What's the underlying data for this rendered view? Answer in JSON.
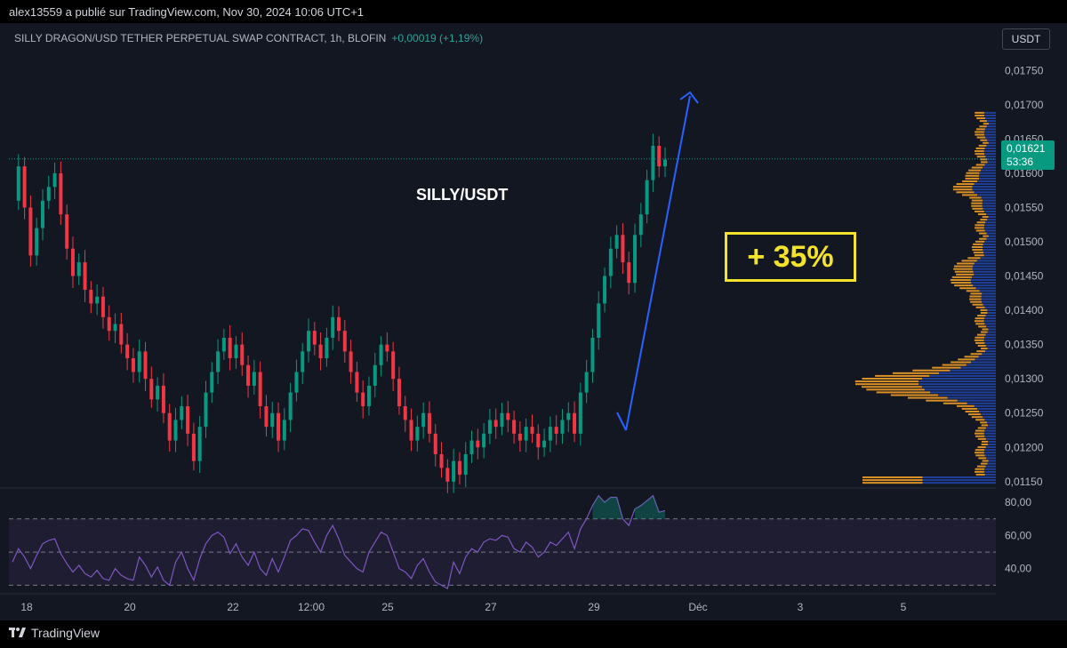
{
  "header": {
    "publisher_line": "alex13559 a publié sur TradingView.com, Nov 30, 2024 10:06 UTC+1"
  },
  "symbol": {
    "title": "SILLY DRAGON/USD TETHER PERPETUAL SWAP CONTRACT, 1h, BLOFIN",
    "change": "+0,00019 (+1,19%)"
  },
  "currency_button": "USDT",
  "last_price": {
    "value": "0,01621",
    "countdown": "53:36"
  },
  "annotations": {
    "pair_label": "SILLY/USDT",
    "gain_label": "+ 35%"
  },
  "footer": {
    "brand": "TradingView"
  },
  "colors": {
    "up": "#089981",
    "down": "#f23645",
    "rsi_line": "#7e57c2",
    "arrow": "#2962ff",
    "highlight": "#f5e22c",
    "volume_profile_up": "#2962ff",
    "volume_profile_down": "#ffa726"
  },
  "chart_data": [
    {
      "type": "candlestick",
      "price_axis": {
        "ticks": [
          "0,01750",
          "0,01700",
          "0,01650",
          "0,01600",
          "0,01550",
          "0,01500",
          "0,01450",
          "0,01400",
          "0,01350",
          "0,01300",
          "0,01250",
          "0,01200",
          "0,01150"
        ],
        "tick_values": [
          0.0175,
          0.017,
          0.0165,
          0.016,
          0.0155,
          0.015,
          0.0145,
          0.014,
          0.0135,
          0.013,
          0.0125,
          0.012,
          0.0115
        ],
        "ylim": [
          0.01142,
          0.01775
        ]
      },
      "time_axis": {
        "ticks": [
          "18",
          "20",
          "22",
          "12:00",
          "25",
          "27",
          "29",
          "Déc",
          "3",
          "5"
        ]
      },
      "last_price": 0.01621,
      "close_path": [
        0.0156,
        0.0161,
        0.0155,
        0.0148,
        0.0152,
        0.0156,
        0.0158,
        0.016,
        0.0154,
        0.0149,
        0.0145,
        0.0147,
        0.0143,
        0.0141,
        0.0142,
        0.0139,
        0.0137,
        0.0138,
        0.0135,
        0.0133,
        0.0131,
        0.0134,
        0.013,
        0.0127,
        0.0129,
        0.0125,
        0.0121,
        0.0124,
        0.0126,
        0.0122,
        0.0118,
        0.0123,
        0.0128,
        0.0131,
        0.0134,
        0.0136,
        0.0133,
        0.0135,
        0.0132,
        0.0129,
        0.0131,
        0.0126,
        0.0123,
        0.0125,
        0.0121,
        0.0124,
        0.0128,
        0.0131,
        0.0134,
        0.0137,
        0.0135,
        0.0133,
        0.0136,
        0.0139,
        0.0137,
        0.0134,
        0.0131,
        0.0128,
        0.0126,
        0.0129,
        0.0132,
        0.0135,
        0.0134,
        0.013,
        0.0126,
        0.0124,
        0.0121,
        0.0123,
        0.0125,
        0.0122,
        0.0119,
        0.0117,
        0.0115,
        0.0118,
        0.0116,
        0.0119,
        0.0121,
        0.012,
        0.0122,
        0.0124,
        0.0123,
        0.0125,
        0.0124,
        0.0122,
        0.0121,
        0.0123,
        0.0122,
        0.012,
        0.0121,
        0.0123,
        0.0122,
        0.0124,
        0.0125,
        0.0122,
        0.0128,
        0.0131,
        0.0136,
        0.0141,
        0.0145,
        0.0149,
        0.0151,
        0.0147,
        0.0144,
        0.0151,
        0.0154,
        0.0159,
        0.0164,
        0.0161,
        0.0162
      ]
    },
    {
      "type": "line",
      "name": "RSI",
      "y_axis": {
        "ticks": [
          "80,00",
          "60,00",
          "40,00"
        ],
        "tick_values": [
          80,
          60,
          40
        ],
        "ylim": [
          27,
          87
        ],
        "band": [
          30,
          70
        ]
      },
      "values": [
        44,
        52,
        47,
        40,
        48,
        55,
        57,
        58,
        49,
        43,
        38,
        42,
        37,
        35,
        39,
        34,
        33,
        40,
        36,
        34,
        33,
        47,
        42,
        35,
        41,
        33,
        30,
        44,
        50,
        40,
        33,
        46,
        55,
        60,
        62,
        59,
        49,
        55,
        47,
        42,
        50,
        40,
        36,
        46,
        38,
        47,
        57,
        60,
        64,
        63,
        56,
        50,
        60,
        66,
        58,
        48,
        44,
        40,
        38,
        50,
        56,
        62,
        60,
        50,
        40,
        38,
        34,
        42,
        46,
        38,
        32,
        30,
        28,
        44,
        37,
        47,
        52,
        50,
        56,
        58,
        57,
        60,
        59,
        52,
        50,
        56,
        53,
        47,
        50,
        56,
        54,
        58,
        62,
        52,
        64,
        70,
        78,
        84,
        80,
        83,
        83,
        70,
        66,
        76,
        78,
        81,
        84,
        74,
        75
      ]
    }
  ]
}
